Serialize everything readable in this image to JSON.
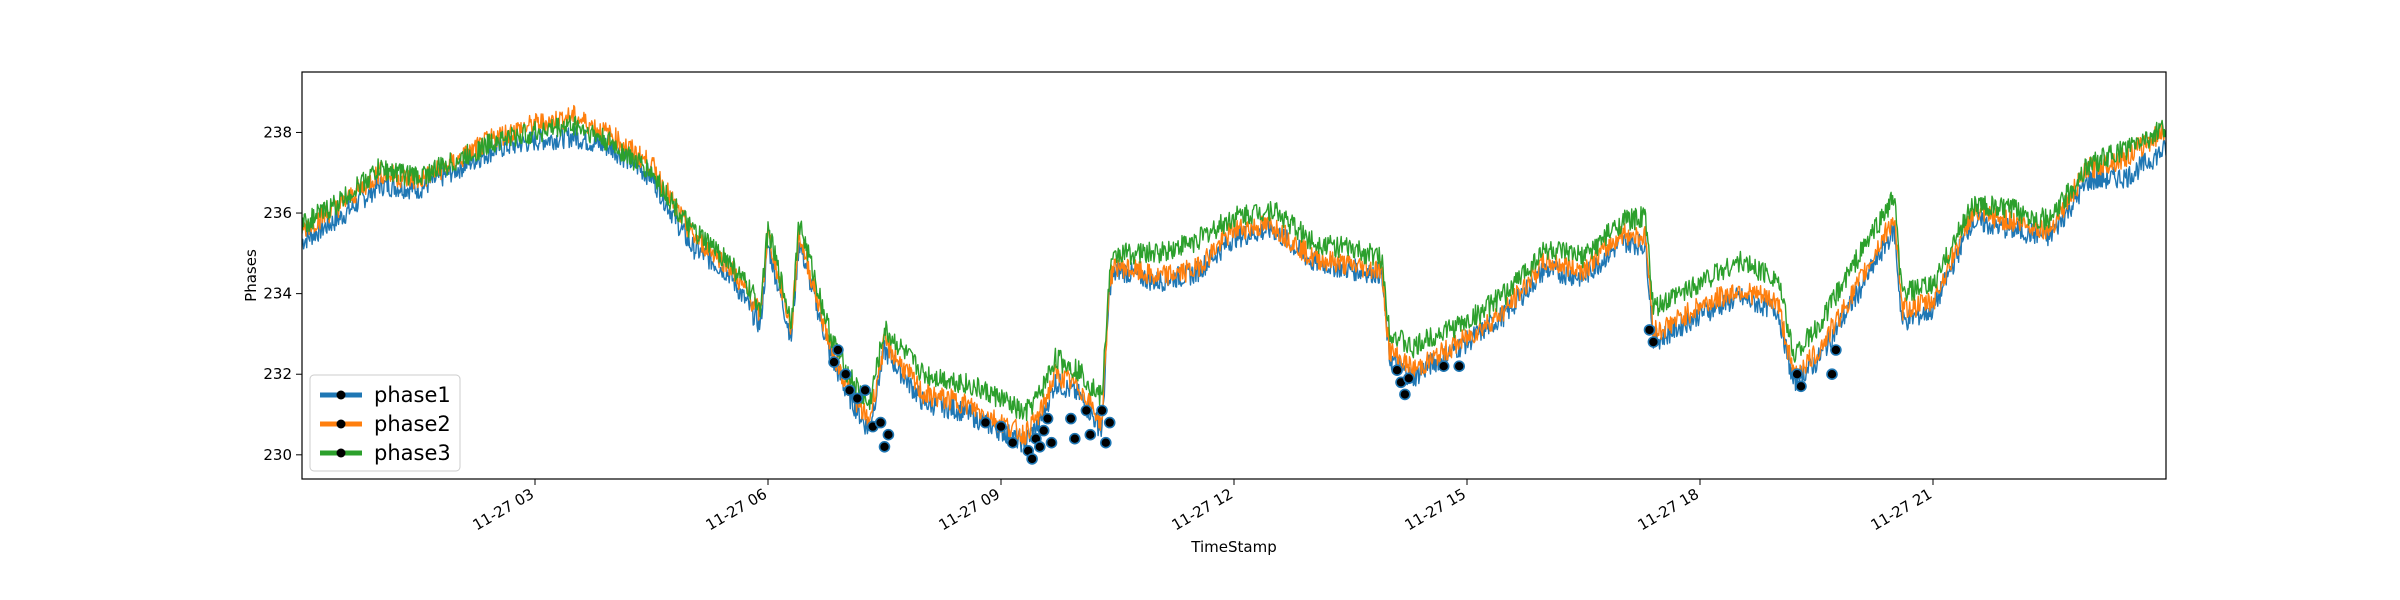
{
  "chart_data": {
    "type": "line",
    "title": "",
    "xlabel": "TimeStamp",
    "ylabel": "Phases",
    "xlim": [
      "11-27 00:00",
      "11-27 24:00"
    ],
    "ylim": [
      229.4,
      239.5
    ],
    "grid": false,
    "legend_position": "lower-left",
    "x_ticks": [
      {
        "hour": 3,
        "label": "11-27 03"
      },
      {
        "hour": 6,
        "label": "11-27 06"
      },
      {
        "hour": 9,
        "label": "11-27 09"
      },
      {
        "hour": 12,
        "label": "11-27 12"
      },
      {
        "hour": 15,
        "label": "11-27 15"
      },
      {
        "hour": 18,
        "label": "11-27 18"
      },
      {
        "hour": 21,
        "label": "11-27 21"
      }
    ],
    "y_ticks": [
      230,
      232,
      234,
      236,
      238
    ],
    "x_hours": [
      0,
      0.5,
      1.0,
      1.5,
      2.0,
      2.5,
      3.0,
      3.5,
      4.0,
      4.5,
      5.0,
      5.5,
      5.9,
      6.0,
      6.3,
      6.4,
      6.5,
      6.8,
      7.0,
      7.3,
      7.5,
      8.0,
      8.5,
      9.0,
      9.3,
      9.5,
      9.7,
      10.0,
      10.3,
      10.4,
      10.5,
      11.0,
      11.5,
      12.0,
      12.5,
      13.0,
      13.5,
      13.9,
      14.0,
      14.3,
      14.5,
      15.0,
      15.5,
      16.0,
      16.5,
      17.0,
      17.3,
      17.4,
      17.5,
      18.0,
      18.5,
      19.0,
      19.2,
      19.5,
      20.0,
      20.5,
      20.6,
      21.0,
      21.5,
      22.0,
      22.5,
      23.0,
      23.5,
      24.0
    ],
    "series": [
      {
        "name": "phase1",
        "color": "#1f77b4",
        "values": [
          235.3,
          235.9,
          236.7,
          236.6,
          237.1,
          237.6,
          237.8,
          237.9,
          237.6,
          236.9,
          235.2,
          234.5,
          233.2,
          235.2,
          232.9,
          235.3,
          234.6,
          232.5,
          231.6,
          230.6,
          232.6,
          231.3,
          231.1,
          230.6,
          230.3,
          230.8,
          231.8,
          231.5,
          230.6,
          234.2,
          234.6,
          234.3,
          234.5,
          235.4,
          235.6,
          234.8,
          234.6,
          234.5,
          232.4,
          231.9,
          232.2,
          232.8,
          233.5,
          234.6,
          234.4,
          235.3,
          235.2,
          232.9,
          232.9,
          233.5,
          233.9,
          233.6,
          231.8,
          232.3,
          233.9,
          235.6,
          233.3,
          233.6,
          235.8,
          235.6,
          235.4,
          236.8,
          236.9,
          237.6
        ]
      },
      {
        "name": "phase2",
        "color": "#ff7f0e",
        "values": [
          235.6,
          236.2,
          237.0,
          236.8,
          237.3,
          237.9,
          238.2,
          238.4,
          237.9,
          237.2,
          235.5,
          234.7,
          233.5,
          235.5,
          233.1,
          235.5,
          234.8,
          232.7,
          231.8,
          230.8,
          232.8,
          231.5,
          231.3,
          230.8,
          230.5,
          231.0,
          232.0,
          231.7,
          230.8,
          234.4,
          234.7,
          234.4,
          234.6,
          235.6,
          235.7,
          234.9,
          234.7,
          234.6,
          232.6,
          232.1,
          232.3,
          232.9,
          233.6,
          234.8,
          234.6,
          235.5,
          235.4,
          233.1,
          233.1,
          233.7,
          234.1,
          233.8,
          232.0,
          232.5,
          234.1,
          235.9,
          233.6,
          233.8,
          236.0,
          235.8,
          235.6,
          237.1,
          237.4,
          238.1
        ]
      },
      {
        "name": "phase3",
        "color": "#2ca02c",
        "values": [
          235.7,
          236.3,
          237.1,
          236.9,
          237.3,
          237.8,
          238.0,
          238.2,
          237.7,
          237.0,
          235.6,
          234.8,
          233.7,
          235.6,
          233.3,
          235.8,
          235.1,
          233.0,
          232.1,
          231.2,
          233.1,
          232.0,
          231.8,
          231.4,
          231.0,
          231.5,
          232.4,
          232.1,
          231.4,
          234.6,
          235.0,
          235.0,
          235.3,
          235.9,
          236.1,
          235.3,
          235.1,
          234.9,
          233.1,
          232.6,
          232.9,
          233.3,
          234.0,
          235.1,
          234.9,
          235.8,
          235.9,
          233.6,
          233.7,
          234.3,
          234.8,
          234.4,
          232.5,
          233.1,
          234.8,
          236.4,
          234.0,
          234.2,
          236.2,
          236.1,
          235.8,
          237.2,
          237.6,
          238.1
        ]
      }
    ],
    "anomaly_points": [
      {
        "x": 6.85,
        "y": 232.3
      },
      {
        "x": 6.9,
        "y": 232.6
      },
      {
        "x": 7.0,
        "y": 232.0
      },
      {
        "x": 7.05,
        "y": 231.6
      },
      {
        "x": 7.15,
        "y": 231.4
      },
      {
        "x": 7.25,
        "y": 231.6
      },
      {
        "x": 7.35,
        "y": 230.7
      },
      {
        "x": 7.45,
        "y": 230.8
      },
      {
        "x": 7.5,
        "y": 230.2
      },
      {
        "x": 7.55,
        "y": 230.5
      },
      {
        "x": 8.8,
        "y": 230.8
      },
      {
        "x": 9.0,
        "y": 230.7
      },
      {
        "x": 9.15,
        "y": 230.3
      },
      {
        "x": 9.35,
        "y": 230.1
      },
      {
        "x": 9.4,
        "y": 229.9
      },
      {
        "x": 9.45,
        "y": 230.4
      },
      {
        "x": 9.5,
        "y": 230.2
      },
      {
        "x": 9.55,
        "y": 230.6
      },
      {
        "x": 9.6,
        "y": 230.9
      },
      {
        "x": 9.65,
        "y": 230.3
      },
      {
        "x": 9.9,
        "y": 230.9
      },
      {
        "x": 9.95,
        "y": 230.4
      },
      {
        "x": 10.1,
        "y": 231.1
      },
      {
        "x": 10.15,
        "y": 230.5
      },
      {
        "x": 10.3,
        "y": 231.1
      },
      {
        "x": 10.35,
        "y": 230.3
      },
      {
        "x": 10.4,
        "y": 230.8
      },
      {
        "x": 14.1,
        "y": 232.1
      },
      {
        "x": 14.15,
        "y": 231.8
      },
      {
        "x": 14.2,
        "y": 231.5
      },
      {
        "x": 14.25,
        "y": 231.9
      },
      {
        "x": 14.7,
        "y": 232.2
      },
      {
        "x": 14.9,
        "y": 232.2
      },
      {
        "x": 17.35,
        "y": 233.1
      },
      {
        "x": 17.4,
        "y": 232.8
      },
      {
        "x": 19.25,
        "y": 232.0
      },
      {
        "x": 19.3,
        "y": 231.7
      },
      {
        "x": 19.7,
        "y": 232.0
      },
      {
        "x": 19.75,
        "y": 232.6
      }
    ]
  }
}
